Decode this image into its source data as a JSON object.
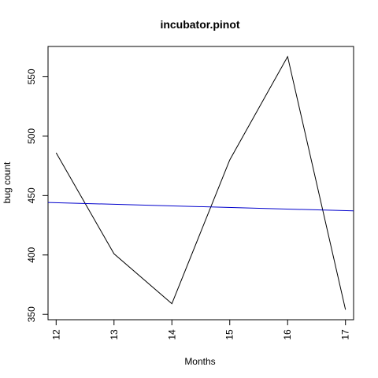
{
  "chart_data": {
    "type": "line",
    "title": "incubator.pinot",
    "xlabel": "Months",
    "ylabel": "bug count",
    "x": [
      12,
      13,
      14,
      15,
      16,
      17
    ],
    "series": [
      {
        "color": "#000000",
        "values": [
          486,
          401,
          359,
          480,
          567,
          354
        ]
      },
      {
        "color": "#0000cc",
        "kind": "trend",
        "values": [
          444,
          442.9,
          441.8,
          440.6,
          439.4,
          437.3
        ]
      }
    ],
    "xlim": [
      11.86,
      17.14
    ],
    "ylim": [
      345.5,
      575.5
    ],
    "x_ticks": [
      12,
      13,
      14,
      15,
      16,
      17
    ],
    "y_ticks": [
      350,
      400,
      450,
      500,
      550
    ],
    "grid": false,
    "legend": "none"
  }
}
